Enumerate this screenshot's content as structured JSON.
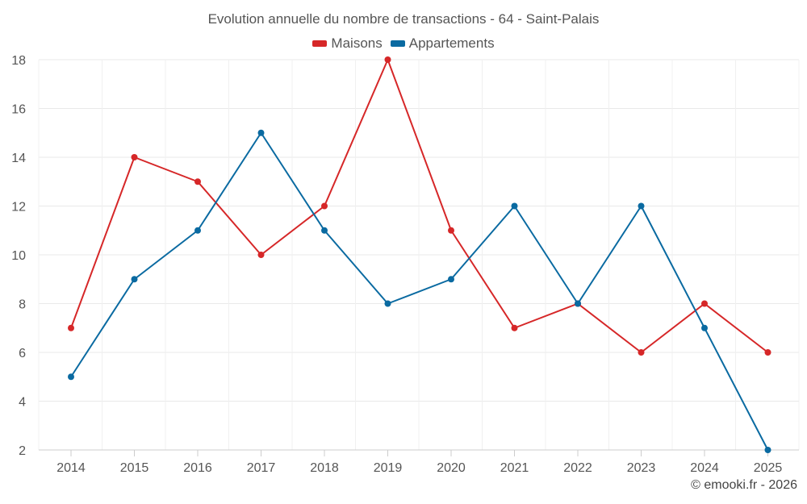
{
  "colors": {
    "maisons": "#d62728",
    "appartements": "#0a6aa1"
  },
  "chart_data": {
    "type": "line",
    "title": "Evolution annuelle du nombre de transactions - 64 - Saint-Palais",
    "categories": [
      "2014",
      "2015",
      "2016",
      "2017",
      "2018",
      "2019",
      "2020",
      "2021",
      "2022",
      "2023",
      "2024",
      "2025"
    ],
    "series": [
      {
        "name": "Maisons",
        "color": "#d62728",
        "values": [
          7,
          14,
          13,
          10,
          12,
          18,
          11,
          7,
          8,
          6,
          8,
          6
        ]
      },
      {
        "name": "Appartements",
        "color": "#0a6aa1",
        "values": [
          5,
          9,
          11,
          15,
          11,
          8,
          9,
          12,
          8,
          12,
          7,
          2
        ]
      }
    ],
    "ylim": [
      2,
      18
    ],
    "yticks": [
      2,
      4,
      6,
      8,
      10,
      12,
      14,
      16,
      18
    ],
    "xlabel": "",
    "ylabel": "",
    "grid": true,
    "legend_position": "top-center"
  },
  "credit": "© emooki.fr - 2026"
}
